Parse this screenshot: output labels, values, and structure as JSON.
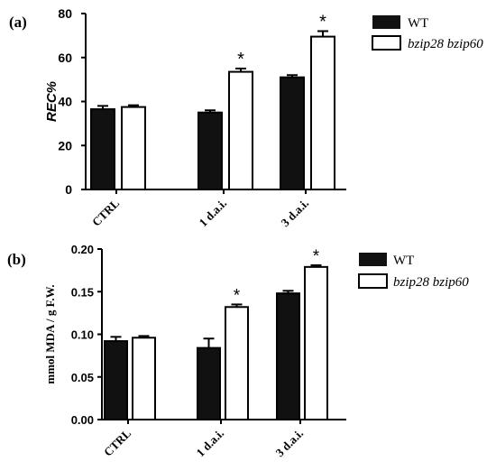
{
  "panels": [
    {
      "panel_label": "(a)",
      "legend": [
        {
          "label": "WT",
          "style": "filled"
        },
        {
          "label": "bzip28 bzip60",
          "style": "open"
        }
      ]
    },
    {
      "panel_label": "(b)",
      "legend": [
        {
          "label": "WT",
          "style": "filled"
        },
        {
          "label": "bzip28 bzip60",
          "style": "open"
        }
      ]
    }
  ],
  "colors": {
    "wt": "#111111",
    "mutant": "#ffffff",
    "axis": "#000000"
  },
  "chart_data": [
    {
      "type": "bar",
      "categories": [
        "CTRL",
        "1 d.a.i.",
        "3 d.a.i."
      ],
      "series": [
        {
          "name": "WT",
          "values": [
            36.5,
            35,
            51
          ],
          "errors": [
            1.5,
            1,
            1
          ]
        },
        {
          "name": "bzip28 bzip60",
          "values": [
            37.5,
            53.5,
            69.5
          ],
          "errors": [
            0.8,
            1.5,
            2.5
          ]
        }
      ],
      "significance": [
        "",
        "*",
        "*"
      ],
      "ylabel": "REC%",
      "ylim": [
        0,
        80
      ],
      "yticks": [
        0,
        20,
        40,
        60,
        80
      ],
      "ytick_labels": [
        "0",
        "20",
        "40",
        "60",
        "80"
      ],
      "grid": false,
      "legend_position": "right"
    },
    {
      "type": "bar",
      "categories": [
        "CTRL",
        "1 d.a.i.",
        "3 d.a.i."
      ],
      "series": [
        {
          "name": "WT",
          "values": [
            0.092,
            0.084,
            0.148
          ],
          "errors": [
            0.005,
            0.011,
            0.003
          ]
        },
        {
          "name": "bzip28 bzip60",
          "values": [
            0.096,
            0.132,
            0.179
          ],
          "errors": [
            0.002,
            0.003,
            0.002
          ]
        }
      ],
      "significance": [
        "",
        "*",
        "*"
      ],
      "ylabel": "mmol MDA / g F.W.",
      "ylim": [
        0,
        0.2
      ],
      "yticks": [
        0,
        0.05,
        0.1,
        0.15,
        0.2
      ],
      "ytick_labels": [
        "0.00",
        "0.05",
        "0.10",
        "0.15",
        "0.20"
      ],
      "grid": false,
      "legend_position": "right"
    }
  ]
}
